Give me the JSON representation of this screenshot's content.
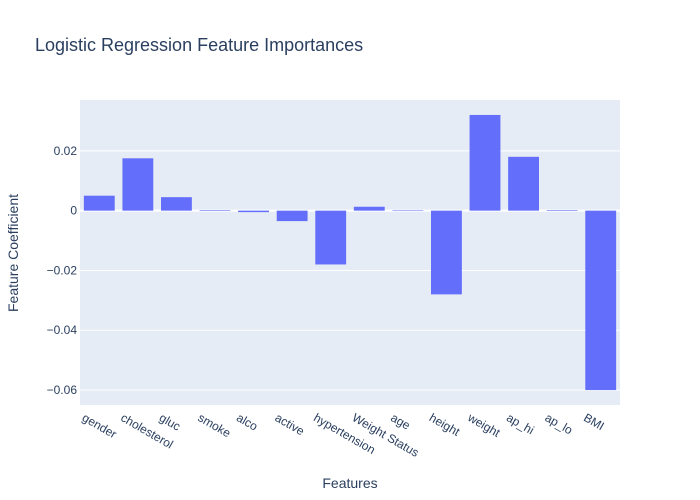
{
  "chart_data": {
    "type": "bar",
    "title": "Logistic Regression Feature Importances",
    "xlabel": "Features",
    "ylabel": "Feature Coefficient",
    "categories": [
      "gender",
      "cholesterol",
      "gluc",
      "smoke",
      "alco",
      "active",
      "hypertension",
      "Weight Status",
      "age",
      "height",
      "weight",
      "ap_hi",
      "ap_lo",
      "BMI"
    ],
    "values": [
      0.005,
      0.0175,
      0.0045,
      0.0002,
      -0.0005,
      -0.0035,
      -0.018,
      0.0013,
      0.0001,
      -0.028,
      0.032,
      0.018,
      0.0002,
      -0.06
    ],
    "ylim": [
      -0.065,
      0.037
    ],
    "yticks": [
      0.02,
      0,
      -0.02,
      -0.04,
      -0.06
    ],
    "ytick_labels": [
      "0.02",
      "0",
      "−0.02",
      "−0.04",
      "−0.06"
    ],
    "grid": true,
    "colors": {
      "bar": "#636efa",
      "plot_bg": "#e5ecf6",
      "text": "#2a3f5f"
    }
  }
}
